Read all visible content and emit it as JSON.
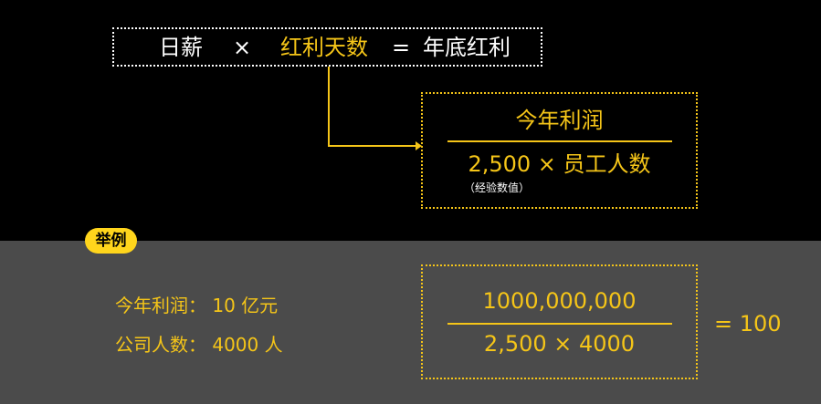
{
  "formula": {
    "daily_wage": "日薪",
    "times": "×",
    "bonus_days": "红利天数",
    "equals": "=",
    "year_end_bonus": "年底红利"
  },
  "definition": {
    "numerator": "今年利润",
    "denominator": "2,500 × 员工人数",
    "note": "（经验数值）"
  },
  "example": {
    "badge": "举例",
    "profit_line": "今年利润：  10 亿元",
    "staff_line": "公司人数：  4000 人",
    "numerator": "1000,000,000",
    "denominator": "2,500 × 4000",
    "result": "= 100"
  },
  "colors": {
    "accent": "#f5c518",
    "badge": "#ffd51c",
    "top_background": "#000000",
    "bottom_background": "#4b4b4b"
  }
}
